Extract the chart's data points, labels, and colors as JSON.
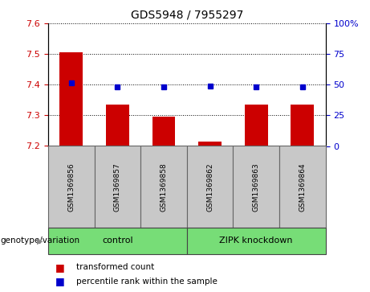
{
  "title": "GDS5948 / 7955297",
  "samples": [
    "GSM1369856",
    "GSM1369857",
    "GSM1369858",
    "GSM1369862",
    "GSM1369863",
    "GSM1369864"
  ],
  "bar_values": [
    7.505,
    7.335,
    7.295,
    7.215,
    7.335,
    7.335
  ],
  "dot_values": [
    7.405,
    7.392,
    7.392,
    7.395,
    7.392,
    7.392
  ],
  "bar_baseline": 7.2,
  "ylim_left": [
    7.2,
    7.6
  ],
  "ylim_right": [
    0,
    100
  ],
  "yticks_left": [
    7.2,
    7.3,
    7.4,
    7.5,
    7.6
  ],
  "yticks_right": [
    0,
    25,
    50,
    75,
    100
  ],
  "bar_color": "#cc0000",
  "dot_color": "#0000cc",
  "groups": [
    {
      "label": "control",
      "indices": [
        0,
        1,
        2
      ],
      "color": "#77dd77"
    },
    {
      "label": "ZIPK knockdown",
      "indices": [
        3,
        4,
        5
      ],
      "color": "#77dd77"
    }
  ],
  "group_label_prefix": "genotype/variation",
  "legend_bar_label": "transformed count",
  "legend_dot_label": "percentile rank within the sample",
  "bg_color": "#ffffff",
  "plot_bg_color": "#ffffff",
  "sample_box_color": "#c8c8c8",
  "title_fontsize": 10,
  "tick_fontsize": 8,
  "label_fontsize": 8
}
